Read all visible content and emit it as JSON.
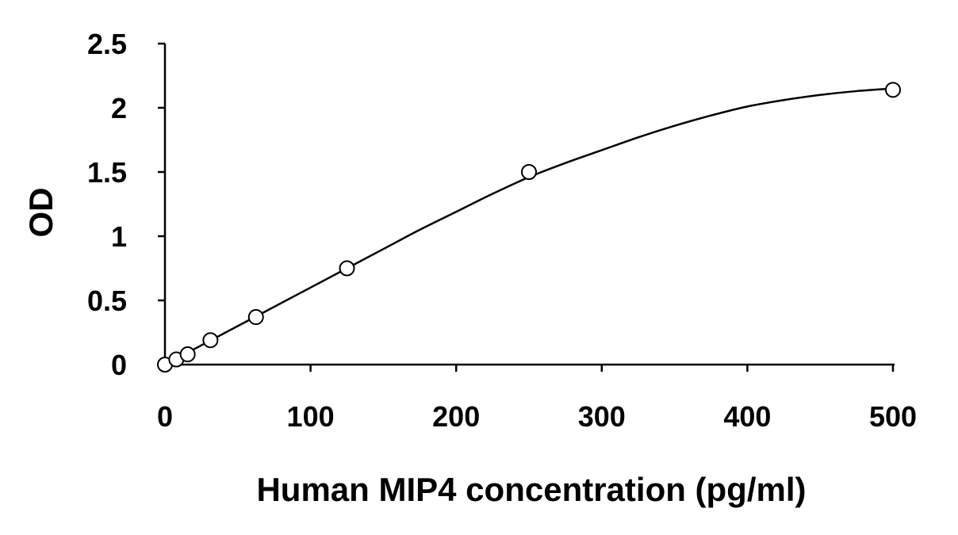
{
  "chart_data": {
    "type": "scatter",
    "title": "",
    "xlabel": "Human MIP4 concentration (pg/ml)",
    "ylabel": "OD",
    "xlim": [
      0,
      500
    ],
    "ylim": [
      0,
      2.5
    ],
    "x_ticks": [
      "0",
      "100",
      "200",
      "300",
      "400",
      "500"
    ],
    "y_ticks": [
      "0",
      "0.5",
      "1",
      "1.5",
      "2",
      "2.5"
    ],
    "grid": false,
    "legend": false,
    "series": [
      {
        "marker": "open-circle",
        "x": [
          0,
          7.8,
          15.6,
          31.25,
          62.5,
          125,
          250,
          500
        ],
        "y": [
          0.0,
          0.04,
          0.08,
          0.19,
          0.37,
          0.75,
          1.5,
          2.14
        ]
      }
    ],
    "fit_curve": {
      "style": "solid-line",
      "x": [
        0,
        25,
        50,
        75,
        100,
        125,
        150,
        175,
        200,
        225,
        250,
        275,
        300,
        325,
        350,
        375,
        400,
        425,
        450,
        475,
        500
      ],
      "y": [
        0.0,
        0.15,
        0.3,
        0.45,
        0.6,
        0.75,
        0.9,
        1.05,
        1.19,
        1.33,
        1.46,
        1.57,
        1.67,
        1.77,
        1.86,
        1.94,
        2.01,
        2.06,
        2.1,
        2.13,
        2.15
      ]
    }
  }
}
